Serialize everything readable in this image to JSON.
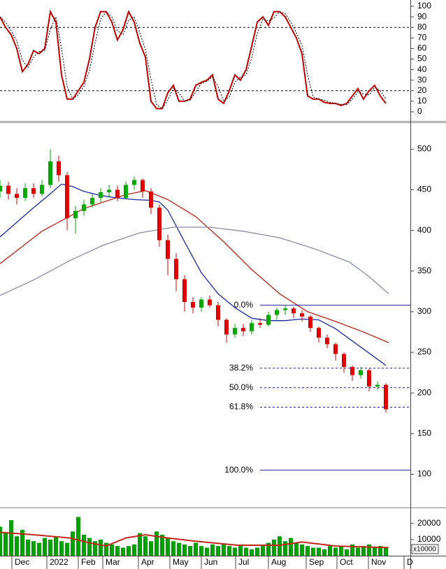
{
  "chart_data": [
    {
      "type": "line",
      "x": [
        0,
        2,
        4,
        6,
        8,
        10,
        12,
        14,
        16,
        18,
        20,
        22,
        24,
        26,
        28,
        30,
        32,
        34,
        36,
        38,
        40,
        42,
        44,
        46,
        48,
        50,
        52,
        54,
        56,
        58,
        60,
        62,
        64,
        66,
        68,
        70,
        72,
        74,
        76,
        78,
        80,
        82,
        84,
        86,
        88,
        90,
        92,
        94,
        96,
        98,
        100,
        102,
        104,
        106,
        108,
        110,
        112,
        114,
        116,
        118,
        120,
        122,
        124,
        126,
        128,
        130,
        132,
        134,
        136,
        138
      ],
      "xlim": [
        0,
        146.75
      ],
      "series": [
        {
          "color": "#c00000",
          "dashed": false,
          "values": [
            90,
            80,
            73,
            60,
            38,
            45,
            58,
            55,
            60,
            95,
            85,
            35,
            12,
            12,
            20,
            28,
            50,
            80,
            95,
            95,
            85,
            68,
            78,
            95,
            85,
            65,
            52,
            10,
            3,
            3,
            18,
            25,
            10,
            10,
            12,
            25,
            28,
            30,
            35,
            12,
            8,
            20,
            35,
            30,
            40,
            62,
            85,
            90,
            82,
            95,
            95,
            90,
            80,
            70,
            55,
            15,
            12,
            12,
            9,
            8,
            8,
            6,
            8,
            15,
            22,
            12,
            20,
            25,
            15,
            8
          ]
        },
        {
          "color": "#000000",
          "dashed": true,
          "values": [
            90,
            85,
            77,
            67,
            49,
            42,
            52,
            57,
            58,
            78,
            90,
            60,
            24,
            12,
            16,
            24,
            39,
            65,
            88,
            95,
            90,
            77,
            73,
            87,
            90,
            75,
            59,
            31,
            7,
            3,
            11,
            22,
            18,
            10,
            11,
            19,
            27,
            29,
            33,
            24,
            10,
            14,
            28,
            33,
            35,
            51,
            74,
            88,
            86,
            89,
            95,
            93,
            85,
            75,
            63,
            35,
            14,
            12,
            11,
            9,
            8,
            7,
            7,
            12,
            19,
            17,
            16,
            23,
            20,
            12
          ]
        }
      ],
      "reference_lines": [
        80,
        20
      ],
      "ylim": [
        -8,
        106
      ],
      "yticks": [
        0,
        10,
        20,
        30,
        40,
        50,
        60,
        70,
        80,
        90,
        100
      ]
    },
    {
      "type": "candlestick",
      "x": [
        0,
        3,
        6,
        9,
        12,
        15,
        18,
        21,
        24,
        27,
        30,
        33,
        36,
        39,
        42,
        45,
        48,
        51,
        54,
        57,
        60,
        63,
        66,
        69,
        72,
        75,
        78,
        81,
        84,
        87,
        90,
        93,
        96,
        99,
        102,
        105,
        108,
        111,
        114,
        117,
        120,
        123,
        126,
        129,
        132,
        135,
        138
      ],
      "xlim": [
        0,
        146.75
      ],
      "ohlc": [
        [
          448,
          462,
          440,
          455
        ],
        [
          455,
          460,
          438,
          445
        ],
        [
          445,
          452,
          432,
          440
        ],
        [
          440,
          458,
          436,
          452
        ],
        [
          452,
          458,
          440,
          445
        ],
        [
          445,
          462,
          442,
          456
        ],
        [
          456,
          500,
          452,
          485
        ],
        [
          485,
          492,
          460,
          468
        ],
        [
          468,
          472,
          400,
          415
        ],
        [
          415,
          430,
          396,
          424
        ],
        [
          424,
          438,
          418,
          432
        ],
        [
          432,
          445,
          428,
          440
        ],
        [
          440,
          452,
          435,
          447
        ],
        [
          447,
          456,
          440,
          450
        ],
        [
          450,
          455,
          436,
          440
        ],
        [
          440,
          460,
          438,
          456
        ],
        [
          456,
          466,
          450,
          462
        ],
        [
          462,
          464,
          440,
          448
        ],
        [
          448,
          452,
          420,
          428
        ],
        [
          428,
          432,
          380,
          388
        ],
        [
          388,
          395,
          345,
          365
        ],
        [
          365,
          372,
          325,
          340
        ],
        [
          340,
          345,
          300,
          312
        ],
        [
          312,
          318,
          298,
          305
        ],
        [
          305,
          318,
          300,
          315
        ],
        [
          315,
          320,
          305,
          308
        ],
        [
          308,
          312,
          282,
          290
        ],
        [
          290,
          292,
          262,
          272
        ],
        [
          272,
          285,
          268,
          280
        ],
        [
          280,
          285,
          270,
          276
        ],
        [
          276,
          290,
          272,
          286
        ],
        [
          286,
          292,
          280,
          284
        ],
        [
          284,
          300,
          282,
          296
        ],
        [
          296,
          305,
          290,
          302
        ],
        [
          302,
          308,
          296,
          304
        ],
        [
          304,
          306,
          292,
          298
        ],
        [
          298,
          302,
          288,
          294
        ],
        [
          294,
          296,
          275,
          280
        ],
        [
          280,
          282,
          262,
          268
        ],
        [
          268,
          272,
          255,
          260
        ],
        [
          260,
          262,
          240,
          248
        ],
        [
          248,
          250,
          225,
          232
        ],
        [
          232,
          234,
          215,
          222
        ],
        [
          222,
          232,
          218,
          228
        ],
        [
          228,
          230,
          202,
          208
        ],
        [
          208,
          214,
          204,
          210
        ],
        [
          210,
          212,
          176,
          180
        ]
      ],
      "up_color": "#00a800",
      "down_color": "#e00000",
      "overlays": [
        {
          "color": "#1a2a9c",
          "x": [
            0,
            6,
            12,
            18,
            22,
            26,
            30,
            36,
            42,
            48,
            54,
            57,
            60,
            66,
            72,
            78,
            84,
            90,
            96,
            102,
            108,
            114,
            120,
            126,
            132,
            138
          ],
          "values": [
            392,
            410,
            428,
            445,
            457,
            454,
            448,
            443,
            440,
            438,
            437,
            435,
            425,
            386,
            348,
            322,
            305,
            292,
            289,
            289,
            291,
            290,
            279,
            264,
            249,
            234
          ]
        },
        {
          "color": "#b02a1a",
          "x": [
            0,
            15,
            30,
            45,
            52,
            60,
            70,
            80,
            90,
            100,
            110,
            120,
            130,
            139
          ],
          "values": [
            359,
            399,
            427,
            444,
            449,
            438,
            417,
            386,
            352,
            322,
            300,
            288,
            275,
            262
          ]
        },
        {
          "color": "#8c8ca0",
          "x": [
            0,
            12,
            25,
            37,
            50,
            62,
            75,
            87,
            100,
            112,
            125,
            132,
            139
          ],
          "values": [
            320,
            339,
            363,
            382,
            397,
            404,
            404,
            399,
            391,
            378,
            361,
            343,
            322
          ]
        }
      ],
      "fibonacci": {
        "x_start": 93,
        "color": "#22229a",
        "levels": [
          {
            "label": "0.0%",
            "value": 308,
            "dashed": false
          },
          {
            "label": "38.2%",
            "value": 230.5,
            "dashed": true
          },
          {
            "label": "50.0%",
            "value": 206.5,
            "dashed": true
          },
          {
            "label": "61.8%",
            "value": 182.5,
            "dashed": true
          },
          {
            "label": "100.0%",
            "value": 105,
            "dashed": false
          }
        ]
      },
      "ylim": [
        60,
        533
      ],
      "yticks": [
        100,
        150,
        200,
        250,
        300,
        350,
        400,
        450,
        500
      ]
    },
    {
      "type": "bar",
      "x": [
        0,
        2,
        4,
        6,
        8,
        10,
        12,
        14,
        16,
        18,
        20,
        22,
        24,
        26,
        28,
        30,
        32,
        34,
        36,
        38,
        40,
        42,
        44,
        46,
        48,
        50,
        52,
        54,
        56,
        58,
        60,
        62,
        64,
        66,
        68,
        70,
        72,
        74,
        76,
        78,
        80,
        82,
        84,
        86,
        88,
        90,
        92,
        94,
        96,
        98,
        100,
        102,
        104,
        106,
        108,
        110,
        112,
        114,
        116,
        118,
        120,
        122,
        124,
        126,
        128,
        130,
        132,
        134,
        136,
        138
      ],
      "xlim": [
        0,
        146.75
      ],
      "values": [
        18000,
        14000,
        22000,
        12000,
        16000,
        10000,
        9000,
        8000,
        11000,
        10000,
        12000,
        9000,
        8000,
        15000,
        24000,
        13000,
        11000,
        9000,
        10000,
        8000,
        7000,
        6000,
        5000,
        6000,
        7000,
        14000,
        12000,
        9000,
        15000,
        13000,
        11000,
        9000,
        8000,
        7000,
        6000,
        8000,
        6000,
        5000,
        7000,
        6000,
        7000,
        6000,
        5000,
        6000,
        5000,
        4000,
        5000,
        6000,
        8000,
        10000,
        12000,
        9000,
        11000,
        8000,
        7000,
        6000,
        5000,
        5000,
        4000,
        6000,
        5000,
        6000,
        4000,
        7000,
        5000,
        6000,
        7000,
        5000,
        6000,
        5000
      ],
      "color": "#00a000",
      "overlay": {
        "color": "#c0281a",
        "x": [
          0,
          12,
          25,
          32,
          38,
          45,
          52,
          60,
          70,
          85,
          100,
          108,
          120,
          139
        ],
        "values": [
          14500,
          13000,
          11000,
          8000,
          6000,
          11000,
          13000,
          11000,
          9000,
          6500,
          6500,
          8500,
          6000,
          5000
        ]
      },
      "multiplier_label": "x10000",
      "ylim": [
        0,
        29000
      ],
      "yticks": [
        10000,
        20000
      ],
      "xticks": [
        {
          "value": 4.25,
          "label": "Dec"
        },
        {
          "value": 16.75,
          "label": "2022"
        },
        {
          "value": 28,
          "label": "Feb"
        },
        {
          "value": 36.75,
          "label": "Mar"
        },
        {
          "value": 49.5,
          "label": "Apr"
        },
        {
          "value": 60.75,
          "label": "May"
        },
        {
          "value": 72,
          "label": "Jun"
        },
        {
          "value": 84.25,
          "label": "Jul"
        },
        {
          "value": 96,
          "label": "Aug"
        },
        {
          "value": 109.5,
          "label": "Sep"
        },
        {
          "value": 120.5,
          "label": "Oct"
        },
        {
          "value": 131.75,
          "label": "Nov"
        },
        {
          "value": 144.5,
          "label": "D"
        }
      ]
    }
  ]
}
